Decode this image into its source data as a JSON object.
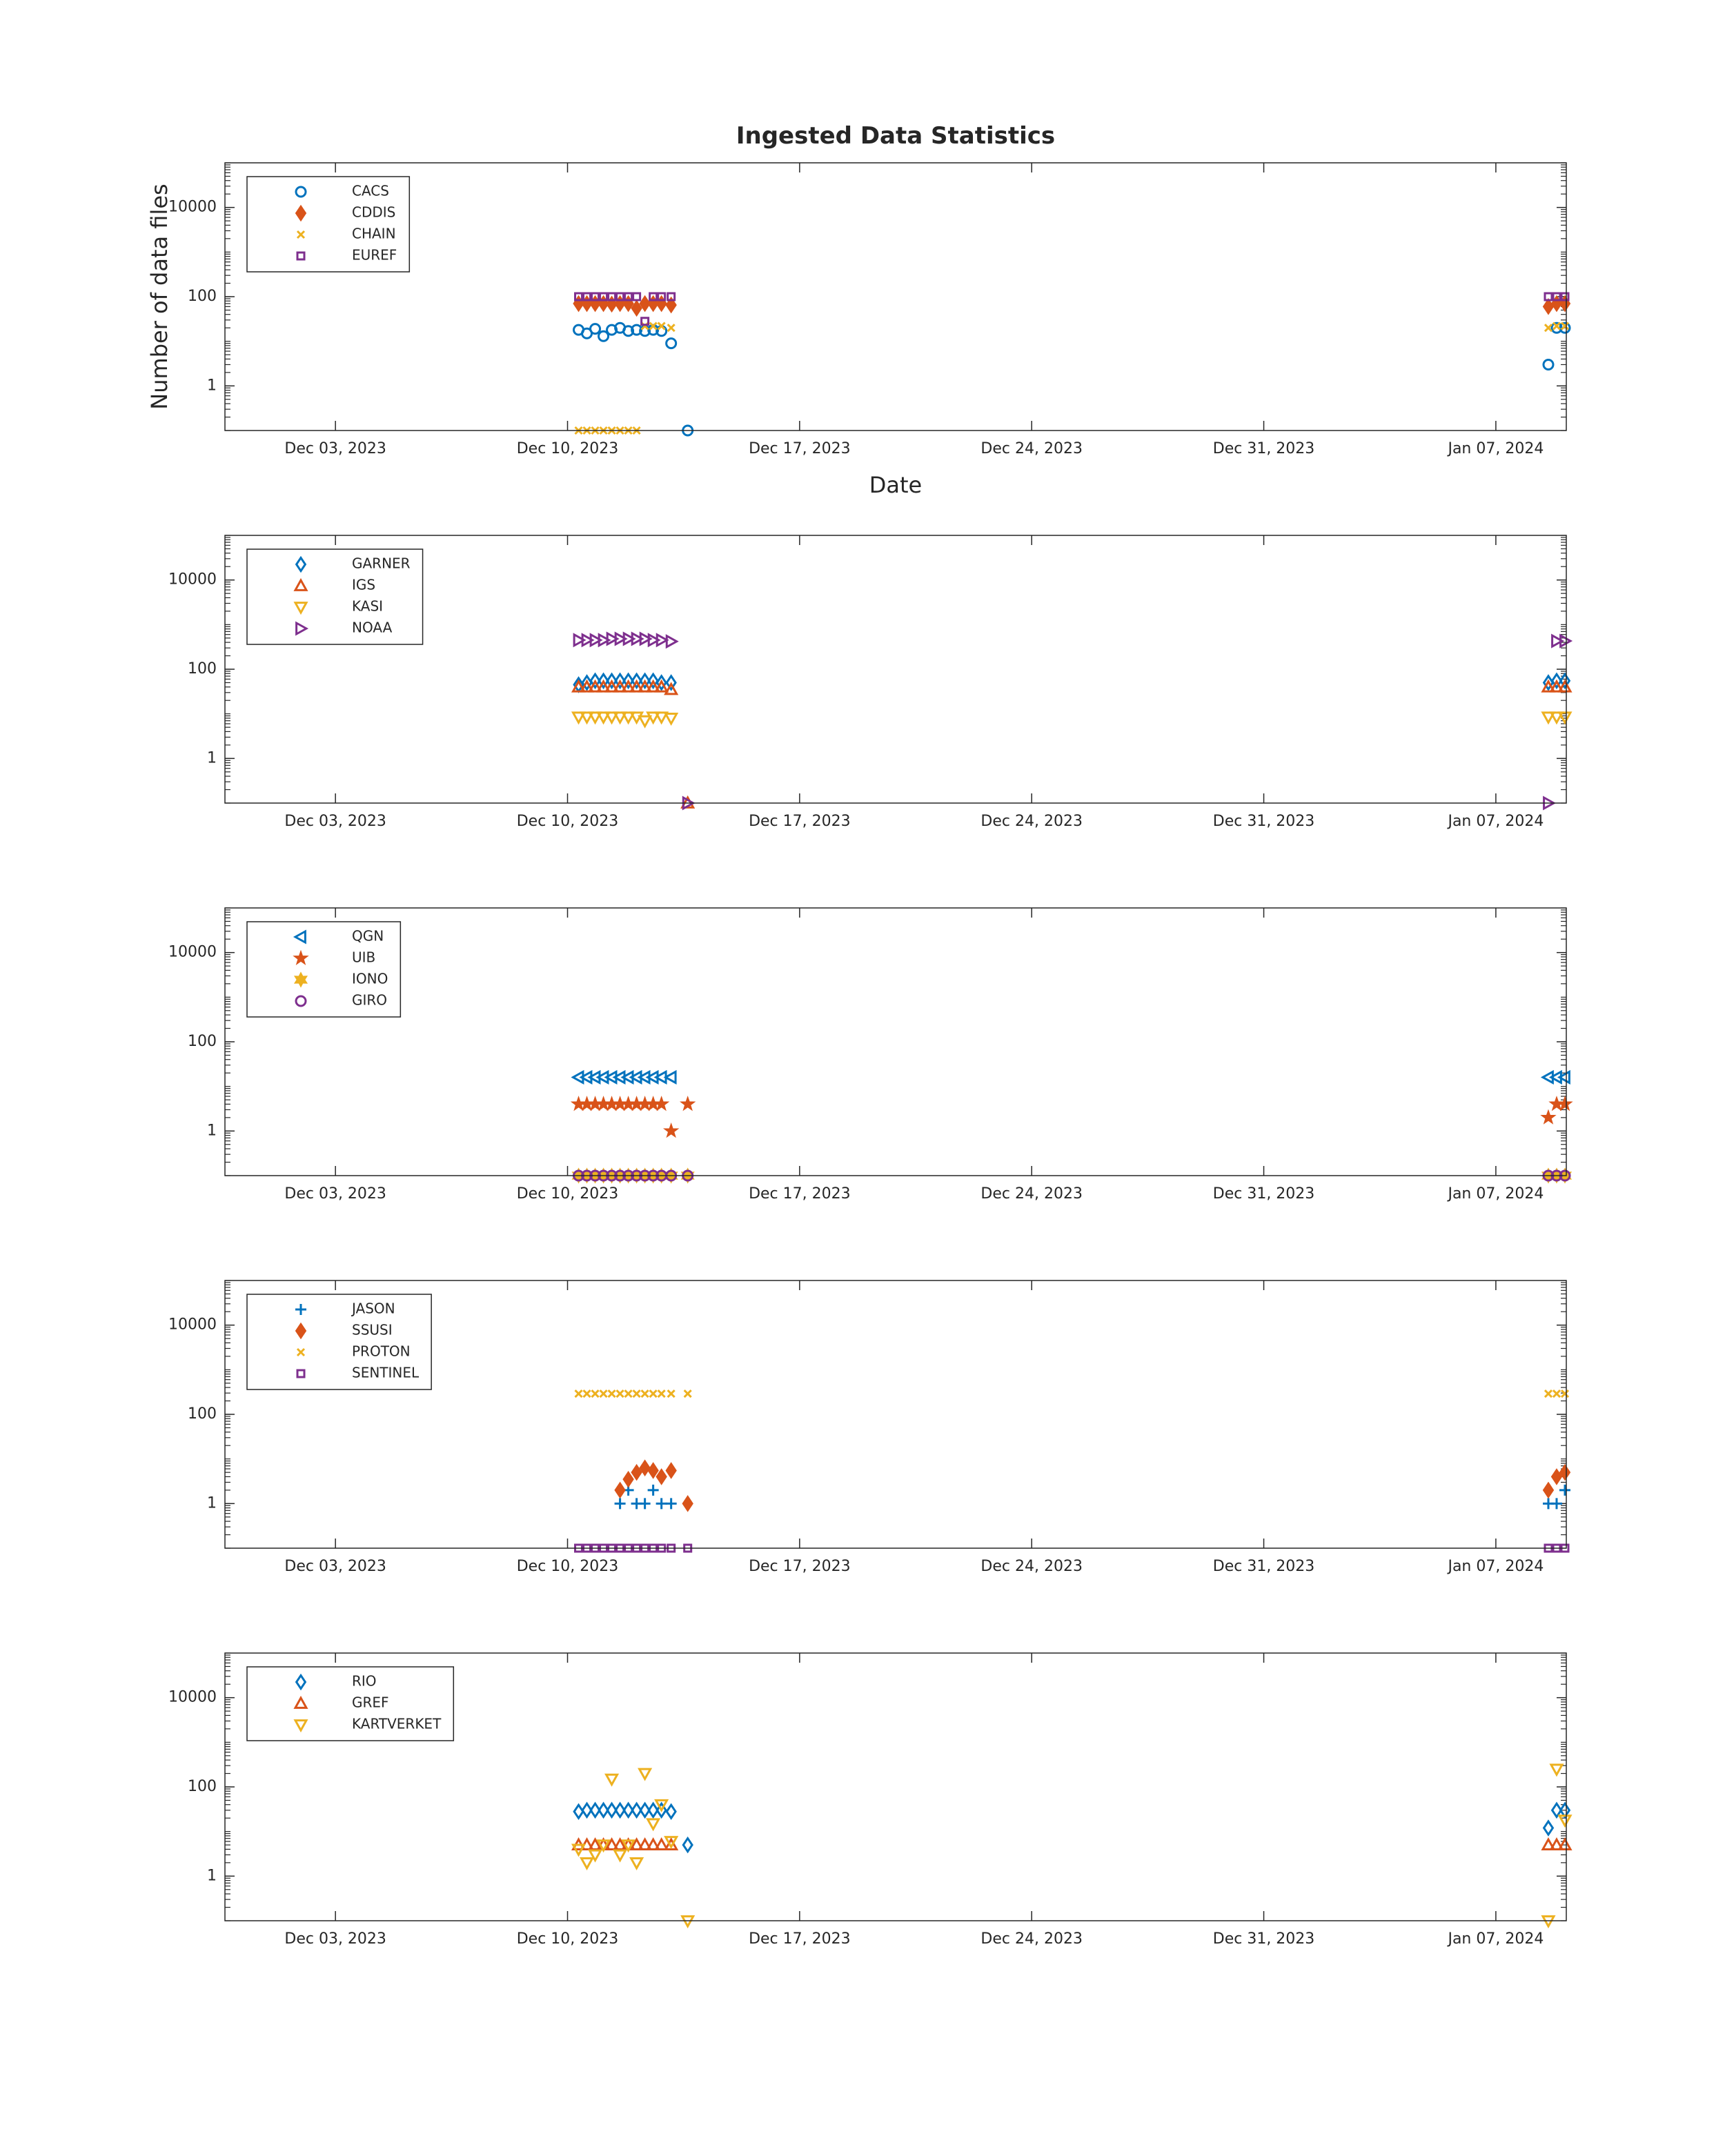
{
  "chart_data": [
    {
      "type": "scatter",
      "title": "Ingested Data Statistics",
      "ylabel": "Number of data files",
      "xlabel": "Date",
      "log_y": true,
      "legend": "northwest",
      "xlim": [
        "2023-11-29T16:00",
        "2024-01-09T03:00"
      ],
      "xticks": [
        {
          "value": "2023-12-03T00:00",
          "label": "Dec 03, 2023"
        },
        {
          "value": "2023-12-10T00:00",
          "label": "Dec 10, 2023"
        },
        {
          "value": "2023-12-17T00:00",
          "label": "Dec 17, 2023"
        },
        {
          "value": "2023-12-24T00:00",
          "label": "Dec 24, 2023"
        },
        {
          "value": "2023-12-31T00:00",
          "label": "Dec 31, 2023"
        },
        {
          "value": "2024-01-07T00:00",
          "label": "Jan 07, 2024"
        }
      ],
      "ylim": [
        0.1,
        100000
      ],
      "yticks": [
        1,
        100,
        10000
      ],
      "x": [
        "2023-12-10T08:00",
        "2023-12-10T14:00",
        "2023-12-10T20:00",
        "2023-12-11T02:00",
        "2023-12-11T08:00",
        "2023-12-11T14:00",
        "2023-12-11T20:00",
        "2023-12-12T02:00",
        "2023-12-12T08:00",
        "2023-12-12T14:00",
        "2023-12-12T20:00",
        "2023-12-13T03:00",
        "2023-12-13T15:00",
        "2024-01-08T14:00",
        "2024-01-08T20:00",
        "2024-01-09T02:00"
      ],
      "series": [
        {
          "name": "CACS",
          "color": "#0072BD",
          "marker": "o",
          "filled": false,
          "values": [
            18,
            15,
            19,
            13,
            18,
            20,
            17,
            18,
            17,
            18,
            17,
            9,
            0.1,
            3,
            20,
            20
          ]
        },
        {
          "name": "CDDIS",
          "color": "#D95319",
          "marker": "d",
          "filled": true,
          "values": [
            70,
            70,
            70,
            70,
            68,
            70,
            70,
            55,
            70,
            70,
            70,
            65,
            null,
            60,
            70,
            70
          ]
        },
        {
          "name": "CHAIN",
          "color": "#EDB120",
          "marker": "x",
          "filled": false,
          "values": [
            0.1,
            0.1,
            0.1,
            0.1,
            0.1,
            0.1,
            0.1,
            0.1,
            22,
            22,
            22,
            20,
            null,
            20,
            22,
            22
          ]
        },
        {
          "name": "EUREF",
          "color": "#7E2F8E",
          "marker": "s",
          "filled": false,
          "values": [
            100,
            100,
            100,
            100,
            100,
            100,
            100,
            100,
            28,
            100,
            100,
            100,
            null,
            100,
            100,
            100
          ]
        }
      ]
    },
    {
      "type": "scatter",
      "log_y": true,
      "legend": "northwest",
      "xlim": [
        "2023-11-29T16:00",
        "2024-01-09T03:00"
      ],
      "xticks": [
        {
          "value": "2023-12-03T00:00",
          "label": "Dec 03, 2023"
        },
        {
          "value": "2023-12-10T00:00",
          "label": "Dec 10, 2023"
        },
        {
          "value": "2023-12-17T00:00",
          "label": "Dec 17, 2023"
        },
        {
          "value": "2023-12-24T00:00",
          "label": "Dec 24, 2023"
        },
        {
          "value": "2023-12-31T00:00",
          "label": "Dec 31, 2023"
        },
        {
          "value": "2024-01-07T00:00",
          "label": "Jan 07, 2024"
        }
      ],
      "ylim": [
        0.1,
        100000
      ],
      "yticks": [
        1,
        100,
        10000
      ],
      "x": [
        "2023-12-10T08:00",
        "2023-12-10T14:00",
        "2023-12-10T20:00",
        "2023-12-11T02:00",
        "2023-12-11T08:00",
        "2023-12-11T14:00",
        "2023-12-11T20:00",
        "2023-12-12T02:00",
        "2023-12-12T08:00",
        "2023-12-12T14:00",
        "2023-12-12T20:00",
        "2023-12-13T03:00",
        "2023-12-13T15:00",
        "2024-01-08T14:00",
        "2024-01-08T20:00",
        "2024-01-09T02:00"
      ],
      "series": [
        {
          "name": "GARNER",
          "color": "#0072BD",
          "marker": "d",
          "filled": false,
          "values": [
            45,
            50,
            55,
            55,
            55,
            55,
            55,
            55,
            55,
            55,
            50,
            50,
            null,
            50,
            55,
            55
          ]
        },
        {
          "name": "IGS",
          "color": "#D95319",
          "marker": "^",
          "filled": false,
          "values": [
            40,
            40,
            40,
            40,
            40,
            40,
            40,
            40,
            40,
            40,
            40,
            35,
            0.1,
            40,
            40,
            40
          ]
        },
        {
          "name": "KASI",
          "color": "#EDB120",
          "marker": "v",
          "filled": false,
          "values": [
            8.5,
            8.5,
            8.5,
            8.5,
            8.5,
            8.5,
            8.5,
            8.5,
            7,
            8.5,
            8.5,
            8,
            null,
            8.5,
            8.5,
            8.5
          ]
        },
        {
          "name": "NOAA",
          "color": "#7E2F8E",
          "marker": ">",
          "filled": false,
          "values": [
            450,
            450,
            450,
            450,
            480,
            480,
            480,
            480,
            480,
            450,
            450,
            420,
            0.1,
            0.1,
            430,
            430
          ]
        }
      ]
    },
    {
      "type": "scatter",
      "log_y": true,
      "legend": "northwest",
      "xlim": [
        "2023-11-29T16:00",
        "2024-01-09T03:00"
      ],
      "xticks": [
        {
          "value": "2023-12-03T00:00",
          "label": "Dec 03, 2023"
        },
        {
          "value": "2023-12-10T00:00",
          "label": "Dec 10, 2023"
        },
        {
          "value": "2023-12-17T00:00",
          "label": "Dec 17, 2023"
        },
        {
          "value": "2023-12-24T00:00",
          "label": "Dec 24, 2023"
        },
        {
          "value": "2023-12-31T00:00",
          "label": "Dec 31, 2023"
        },
        {
          "value": "2024-01-07T00:00",
          "label": "Jan 07, 2024"
        }
      ],
      "ylim": [
        0.1,
        100000
      ],
      "yticks": [
        1,
        100,
        10000
      ],
      "x": [
        "2023-12-10T08:00",
        "2023-12-10T14:00",
        "2023-12-10T20:00",
        "2023-12-11T02:00",
        "2023-12-11T08:00",
        "2023-12-11T14:00",
        "2023-12-11T20:00",
        "2023-12-12T02:00",
        "2023-12-12T08:00",
        "2023-12-12T14:00",
        "2023-12-12T20:00",
        "2023-12-13T03:00",
        "2023-12-13T15:00",
        "2024-01-08T14:00",
        "2024-01-08T20:00",
        "2024-01-09T02:00"
      ],
      "series": [
        {
          "name": "QGN",
          "color": "#0072BD",
          "marker": "<",
          "filled": false,
          "values": [
            16,
            16,
            16,
            16,
            16,
            16,
            16,
            16,
            16,
            16,
            16,
            16,
            null,
            16,
            16,
            16
          ]
        },
        {
          "name": "UIB",
          "color": "#D95319",
          "marker": "p",
          "filled": true,
          "values": [
            4,
            4,
            4,
            4,
            4,
            4,
            4,
            4,
            4,
            4,
            4,
            1,
            4,
            2,
            4,
            4
          ]
        },
        {
          "name": "IONO",
          "color": "#EDB120",
          "marker": "h",
          "filled": true,
          "values": [
            0.1,
            0.1,
            0.1,
            0.1,
            0.1,
            0.1,
            0.1,
            0.1,
            0.1,
            0.1,
            0.1,
            0.1,
            0.1,
            0.1,
            0.1,
            0.1
          ]
        },
        {
          "name": "GIRO",
          "color": "#7E2F8E",
          "marker": "o",
          "filled": false,
          "values": [
            0.1,
            0.1,
            0.1,
            0.1,
            0.1,
            0.1,
            0.1,
            0.1,
            0.1,
            0.1,
            0.1,
            0.1,
            0.1,
            0.1,
            0.1,
            0.1
          ]
        }
      ]
    },
    {
      "type": "scatter",
      "log_y": true,
      "legend": "northwest",
      "xlim": [
        "2023-11-29T16:00",
        "2024-01-09T03:00"
      ],
      "xticks": [
        {
          "value": "2023-12-03T00:00",
          "label": "Dec 03, 2023"
        },
        {
          "value": "2023-12-10T00:00",
          "label": "Dec 10, 2023"
        },
        {
          "value": "2023-12-17T00:00",
          "label": "Dec 17, 2023"
        },
        {
          "value": "2023-12-24T00:00",
          "label": "Dec 24, 2023"
        },
        {
          "value": "2023-12-31T00:00",
          "label": "Dec 31, 2023"
        },
        {
          "value": "2024-01-07T00:00",
          "label": "Jan 07, 2024"
        }
      ],
      "ylim": [
        0.1,
        100000
      ],
      "yticks": [
        1,
        100,
        10000
      ],
      "x": [
        "2023-12-10T08:00",
        "2023-12-10T14:00",
        "2023-12-10T20:00",
        "2023-12-11T02:00",
        "2023-12-11T08:00",
        "2023-12-11T14:00",
        "2023-12-11T20:00",
        "2023-12-12T02:00",
        "2023-12-12T08:00",
        "2023-12-12T14:00",
        "2023-12-12T20:00",
        "2023-12-13T03:00",
        "2023-12-13T15:00",
        "2024-01-08T14:00",
        "2024-01-08T20:00",
        "2024-01-09T02:00"
      ],
      "series": [
        {
          "name": "JASON",
          "color": "#0072BD",
          "marker": "+",
          "filled": false,
          "values": [
            null,
            null,
            null,
            null,
            null,
            1,
            2,
            1,
            1,
            2,
            1,
            1,
            null,
            1,
            1,
            2
          ]
        },
        {
          "name": "SSUSI",
          "color": "#D95319",
          "marker": "d",
          "filled": true,
          "values": [
            null,
            null,
            null,
            null,
            null,
            2,
            3.5,
            5,
            6.3,
            5.5,
            4,
            5.5,
            1,
            2,
            4,
            5
          ]
        },
        {
          "name": "PROTON",
          "color": "#EDB120",
          "marker": "x",
          "filled": false,
          "values": [
            290,
            290,
            290,
            290,
            290,
            290,
            290,
            290,
            290,
            290,
            290,
            290,
            290,
            290,
            290,
            290
          ]
        },
        {
          "name": "SENTINEL",
          "color": "#7E2F8E",
          "marker": "s",
          "filled": false,
          "values": [
            0.1,
            0.1,
            0.1,
            0.1,
            0.1,
            0.1,
            0.1,
            0.1,
            0.1,
            0.1,
            0.1,
            0.1,
            0.1,
            0.1,
            0.1,
            0.1
          ]
        }
      ]
    },
    {
      "type": "scatter",
      "log_y": true,
      "legend": "northwest",
      "xlim": [
        "2023-11-29T16:00",
        "2024-01-09T03:00"
      ],
      "xticks": [
        {
          "value": "2023-12-03T00:00",
          "label": "Dec 03, 2023"
        },
        {
          "value": "2023-12-10T00:00",
          "label": "Dec 10, 2023"
        },
        {
          "value": "2023-12-17T00:00",
          "label": "Dec 17, 2023"
        },
        {
          "value": "2023-12-24T00:00",
          "label": "Dec 24, 2023"
        },
        {
          "value": "2023-12-31T00:00",
          "label": "Dec 31, 2023"
        },
        {
          "value": "2024-01-07T00:00",
          "label": "Jan 07, 2024"
        }
      ],
      "ylim": [
        0.1,
        100000
      ],
      "yticks": [
        1,
        100,
        10000
      ],
      "x": [
        "2023-12-10T08:00",
        "2023-12-10T14:00",
        "2023-12-10T20:00",
        "2023-12-11T02:00",
        "2023-12-11T08:00",
        "2023-12-11T14:00",
        "2023-12-11T20:00",
        "2023-12-12T02:00",
        "2023-12-12T08:00",
        "2023-12-12T14:00",
        "2023-12-12T20:00",
        "2023-12-13T03:00",
        "2023-12-13T15:00",
        "2024-01-08T14:00",
        "2024-01-08T20:00",
        "2024-01-09T02:00"
      ],
      "series": [
        {
          "name": "RIO",
          "color": "#0072BD",
          "marker": "d",
          "filled": false,
          "values": [
            28,
            30,
            30,
            30,
            30,
            30,
            30,
            30,
            30,
            30,
            30,
            28,
            5,
            12,
            30,
            30
          ]
        },
        {
          "name": "GREF",
          "color": "#D95319",
          "marker": "^",
          "filled": false,
          "values": [
            5,
            5,
            5,
            5,
            5,
            5,
            5,
            5,
            5,
            5,
            5,
            5,
            null,
            5,
            5,
            5
          ]
        },
        {
          "name": "KARTVERKET",
          "color": "#EDB120",
          "marker": "v",
          "filled": false,
          "values": [
            4,
            2,
            3,
            5,
            150,
            3,
            5,
            2,
            200,
            15,
            40,
            6,
            0.1,
            0.1,
            250,
            18
          ]
        }
      ]
    }
  ]
}
